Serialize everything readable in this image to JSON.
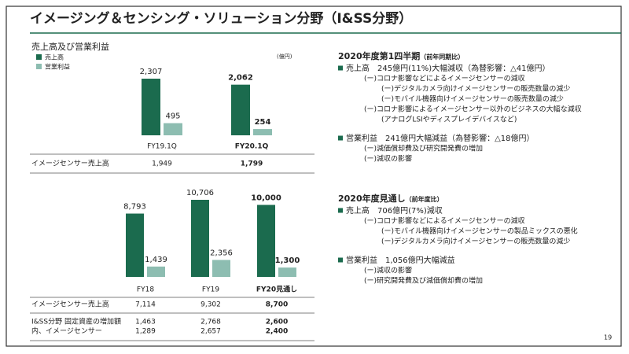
{
  "title": "イメージング＆センシング・ソリューション分野（I&SS分野）",
  "page_number": "19",
  "chart_data": [
    {
      "type": "bar",
      "title": "売上高及び営業利益",
      "unit": "(億円)",
      "categories": [
        "FY19.1Q",
        "FY20.1Q"
      ],
      "series": [
        {
          "name": "売上高",
          "color": "#1b6b4e",
          "values": [
            2307,
            2062
          ],
          "value_labels": [
            "2,307",
            "2,062"
          ]
        },
        {
          "name": "営業利益",
          "color": "#8dbdb1",
          "values": [
            495,
            254
          ],
          "value_labels": [
            "495",
            "254"
          ]
        }
      ]
    },
    {
      "type": "bar",
      "categories": [
        "FY18",
        "FY19",
        "FY20見通し"
      ],
      "series": [
        {
          "color": "#1b6b4e",
          "values": [
            8793,
            10706,
            10000
          ],
          "value_labels": [
            "8,793",
            "10,706",
            "10,000"
          ]
        },
        {
          "color": "#8dbdb1",
          "values": [
            1439,
            2356,
            1300
          ],
          "value_labels": [
            "1,439",
            "2,356",
            "1,300"
          ]
        }
      ]
    }
  ],
  "tables": [
    {
      "rows": [
        [
          "イメージセンサー売上高",
          "1,949",
          "1,799"
        ]
      ]
    },
    {
      "rows": [
        [
          "イメージセンサー売上高",
          "7,114",
          "9,302",
          "8,700"
        ],
        [
          "I&SS分野 固定資産の増加額",
          "1,463",
          "2,768",
          "2,600"
        ],
        [
          "内、イメージセンサー",
          "1,289",
          "2,657",
          "2,400"
        ]
      ]
    }
  ],
  "sections": [
    {
      "heading": "2020年度第1四半期",
      "note": "（前年同期比）",
      "items": [
        {
          "text": "売上高　245億円(11%)大幅減収（為替影響：△41億円）",
          "sub": [
            {
              "text": "(ー)コロナ影響などによるイメージセンサーの減収",
              "sub": [
                {
                  "text": "(ー)デジタルカメラ向けイメージセンサーの販売数量の減少"
                },
                {
                  "text": "(ー)モバイル機器向けイメージセンサーの販売数量の減少"
                }
              ]
            },
            {
              "text": "(ー)コロナ影響によるイメージセンサー以外のビジネスの大幅な減収",
              "sub": [
                {
                  "text": "(アナログLSIやディスプレイデバイスなど)"
                }
              ]
            }
          ]
        },
        {
          "text": "営業利益　241億円大幅減益（為替影響：△18億円）",
          "sub": [
            {
              "text": "(ー)減価償却費及び研究開発費の増加"
            },
            {
              "text": "(ー)減収の影響"
            }
          ]
        }
      ]
    },
    {
      "heading": "2020年度見通し",
      "note": "（前年度比）",
      "items": [
        {
          "text": "売上高　706億円(7%)減収",
          "sub": [
            {
              "text": "(ー)コロナ影響などによるイメージセンサーの減収",
              "sub": [
                {
                  "text": "(ー)モバイル機器向けイメージセンサーの製品ミックスの悪化"
                },
                {
                  "text": "(ー)デジタルカメラ向けイメージセンサーの販売数量の減少"
                }
              ]
            }
          ]
        },
        {
          "text": "営業利益　1,056億円大幅減益",
          "sub": [
            {
              "text": "(ー)減収の影響"
            },
            {
              "text": "(ー)研究開発費及び減価償却費の増加"
            }
          ]
        }
      ]
    }
  ]
}
